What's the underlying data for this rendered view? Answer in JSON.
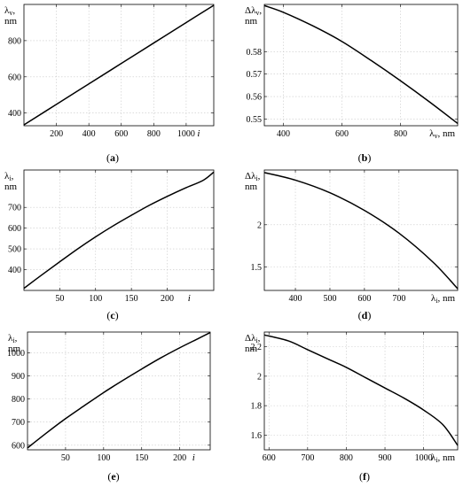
{
  "chart_data": [
    {
      "id": "a",
      "type": "line",
      "panel_label": {
        "open": "(",
        "letter": "a",
        "close": ")"
      },
      "ylabel_top": "λ",
      "ylabel_sub": "v",
      "ylabel_comma": ",",
      "ylabel_unit": "nm",
      "xlabel": "i",
      "xlim": [
        0,
        1170
      ],
      "ylim": [
        330,
        1000
      ],
      "xticks": [
        200,
        400,
        600,
        800,
        1000
      ],
      "yticks": [
        400,
        600,
        800
      ],
      "ytick_labels": [
        "400",
        "600",
        "800"
      ],
      "grid": true,
      "series": [
        {
          "x": [
            0,
            200,
            400,
            600,
            800,
            1000,
            1170
          ],
          "y": [
            335,
            448,
            561,
            674,
            787,
            900,
            995
          ]
        }
      ]
    },
    {
      "id": "b",
      "type": "line",
      "panel_label": {
        "open": "(",
        "letter": "b",
        "close": ")"
      },
      "ylabel_top": "Δλ",
      "ylabel_sub": "v",
      "ylabel_comma": ",",
      "ylabel_unit": "nm",
      "xlabel": "λ",
      "xlabel_sub": "v",
      "xlabel_unit": ", nm",
      "xlim": [
        335,
        995
      ],
      "ylim": [
        0.547,
        0.601
      ],
      "xticks": [
        400,
        600,
        800
      ],
      "yticks": [
        0.55,
        0.56,
        0.57,
        0.58
      ],
      "ytick_labels": [
        "0.55",
        "0.56",
        "0.57",
        "0.58"
      ],
      "grid": true,
      "series": [
        {
          "x": [
            335,
            400,
            500,
            600,
            700,
            800,
            900,
            995
          ],
          "y": [
            0.6005,
            0.5975,
            0.5915,
            0.5845,
            0.576,
            0.567,
            0.5575,
            0.548
          ]
        }
      ]
    },
    {
      "id": "c",
      "type": "line",
      "panel_label": {
        "open": "(",
        "letter": "c",
        "close": ")"
      },
      "ylabel_top": "λ",
      "ylabel_sub": "i",
      "ylabel_comma": ",",
      "ylabel_unit": "nm",
      "xlabel": "i",
      "xlim": [
        0,
        265
      ],
      "ylim": [
        300,
        880
      ],
      "xticks": [
        50,
        100,
        150,
        200
      ],
      "yticks": [
        400,
        500,
        600,
        700
      ],
      "ytick_labels": [
        "400",
        "500",
        "600",
        "700"
      ],
      "grid": true,
      "series": [
        {
          "x": [
            0,
            25,
            50,
            75,
            100,
            125,
            150,
            175,
            200,
            225,
            250,
            265
          ],
          "y": [
            310,
            375,
            438,
            500,
            558,
            612,
            662,
            710,
            753,
            793,
            830,
            870
          ]
        }
      ]
    },
    {
      "id": "d",
      "type": "line",
      "panel_label": {
        "open": "(",
        "letter": "d",
        "close": ")"
      },
      "ylabel_top": "Δλ",
      "ylabel_sub": "i",
      "ylabel_comma": ",",
      "ylabel_unit": "nm",
      "xlabel": "λ",
      "xlabel_sub": "i",
      "xlabel_unit": ", nm",
      "xlim": [
        310,
        870
      ],
      "ylim": [
        1.22,
        2.65
      ],
      "xticks": [
        400,
        500,
        600,
        700
      ],
      "yticks": [
        1.5,
        2
      ],
      "ytick_labels": [
        "1.5",
        "2"
      ],
      "grid": true,
      "series": [
        {
          "x": [
            310,
            400,
            500,
            600,
            700,
            800,
            870
          ],
          "y": [
            2.62,
            2.53,
            2.38,
            2.17,
            1.9,
            1.55,
            1.24
          ]
        }
      ]
    },
    {
      "id": "e",
      "type": "line",
      "panel_label": {
        "open": "(",
        "letter": "e",
        "close": ")"
      },
      "ylabel_top": "λ",
      "ylabel_sub": "i",
      "ylabel_comma": ",",
      "ylabel_unit": "nm",
      "xlabel": "i",
      "xlim": [
        0,
        240
      ],
      "ylim": [
        580,
        1090
      ],
      "xticks": [
        50,
        100,
        150,
        200
      ],
      "yticks": [
        600,
        700,
        800,
        900,
        1000
      ],
      "ytick_labels": [
        "600",
        "700",
        "800",
        "900",
        "1000"
      ],
      "grid": true,
      "series": [
        {
          "x": [
            0,
            25,
            50,
            75,
            100,
            125,
            150,
            175,
            200,
            225,
            240
          ],
          "y": [
            588,
            653,
            715,
            772,
            828,
            880,
            930,
            978,
            1022,
            1063,
            1088
          ]
        }
      ]
    },
    {
      "id": "f",
      "type": "line",
      "panel_label": {
        "open": "(",
        "letter": "f",
        "close": ")"
      },
      "ylabel_top": "Δλ",
      "ylabel_sub": "i",
      "ylabel_comma": ",",
      "ylabel_unit": "nm",
      "xlabel": "λ",
      "xlabel_sub": "i",
      "xlabel_unit": ", nm",
      "xlim": [
        588,
        1088
      ],
      "ylim": [
        1.5,
        2.3
      ],
      "xticks": [
        600,
        700,
        800,
        900,
        1000
      ],
      "yticks": [
        1.6,
        1.8,
        2,
        2.2
      ],
      "ytick_labels": [
        "1.6",
        "1.8",
        "2",
        "2.2"
      ],
      "grid": true,
      "series": [
        {
          "x": [
            588,
            650,
            700,
            750,
            800,
            850,
            900,
            950,
            1000,
            1050,
            1088
          ],
          "y": [
            2.28,
            2.24,
            2.18,
            2.12,
            2.06,
            1.99,
            1.92,
            1.85,
            1.77,
            1.67,
            1.53
          ]
        }
      ]
    }
  ]
}
